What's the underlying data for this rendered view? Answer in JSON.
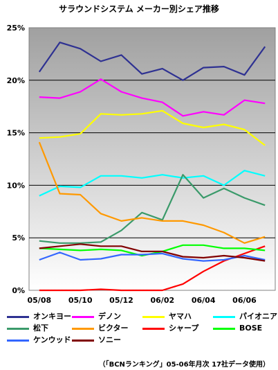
{
  "chart_data": {
    "type": "line",
    "title": "サラウンドシステム メーカー別シェア推移",
    "xlabel": "",
    "ylabel": "",
    "x": [
      "05/08",
      "05/09",
      "05/10",
      "05/11",
      "05/12",
      "06/01",
      "06/02",
      "06/03",
      "06/04",
      "06/05",
      "06/06",
      "06/07"
    ],
    "x_tick_labels": [
      "05/08",
      "05/10",
      "05/12",
      "06/02",
      "06/04",
      "06/06"
    ],
    "y_tick_labels": [
      "0%",
      "5%",
      "10%",
      "15%",
      "20%",
      "25%"
    ],
    "ylim": [
      0,
      25
    ],
    "grid": true,
    "legend_position": "bottom",
    "series": [
      {
        "name": "オンキヨー",
        "color": "#2e3192",
        "values": [
          20.8,
          23.6,
          23.0,
          21.8,
          22.4,
          20.6,
          21.1,
          20.0,
          21.2,
          21.3,
          20.5,
          23.2
        ]
      },
      {
        "name": "デノン",
        "color": "#ff00ff",
        "values": [
          18.4,
          18.3,
          18.9,
          20.1,
          18.9,
          18.3,
          17.9,
          16.6,
          17.0,
          16.7,
          18.1,
          17.8
        ]
      },
      {
        "name": "ヤマハ",
        "color": "#ffff00",
        "values": [
          14.5,
          14.6,
          14.9,
          16.8,
          16.7,
          16.8,
          17.1,
          15.9,
          15.5,
          15.8,
          15.3,
          13.8
        ]
      },
      {
        "name": "パイオニア",
        "color": "#00ffff",
        "values": [
          9.0,
          9.9,
          9.8,
          10.9,
          10.9,
          10.7,
          11.0,
          10.7,
          10.9,
          10.0,
          11.4,
          10.9
        ]
      },
      {
        "name": "松下",
        "color": "#3a9a6a",
        "values": [
          4.7,
          4.5,
          4.5,
          4.6,
          5.7,
          7.4,
          6.7,
          11.0,
          8.8,
          9.7,
          8.8,
          8.1
        ]
      },
      {
        "name": "ビクター",
        "color": "#ff9900",
        "values": [
          14.1,
          9.2,
          9.1,
          7.3,
          6.6,
          6.9,
          6.6,
          6.6,
          6.2,
          5.5,
          4.5,
          5.1
        ]
      },
      {
        "name": "シャープ",
        "color": "#ff0000",
        "values": [
          0.0,
          0.0,
          0.0,
          0.1,
          0.0,
          0.0,
          0.0,
          0.6,
          1.8,
          2.8,
          3.5,
          4.2
        ]
      },
      {
        "name": "BOSE",
        "color": "#00ff00",
        "values": [
          4.0,
          3.9,
          3.8,
          3.9,
          3.8,
          3.3,
          3.7,
          4.3,
          4.3,
          4.0,
          4.0,
          3.8
        ]
      },
      {
        "name": "ケンウッド",
        "color": "#3366ff",
        "values": [
          2.9,
          3.6,
          2.9,
          3.0,
          3.4,
          3.4,
          3.5,
          3.0,
          2.8,
          2.9,
          3.3,
          2.9
        ]
      },
      {
        "name": "ソニー",
        "color": "#800000",
        "values": [
          4.0,
          4.2,
          4.4,
          4.2,
          4.2,
          3.7,
          3.7,
          3.2,
          3.1,
          3.3,
          3.1,
          2.8
        ]
      }
    ]
  },
  "legend_rows": [
    [
      "オンキヨー",
      "デノン",
      "ヤマハ",
      "パイオニア"
    ],
    [
      "松下",
      "ビクター",
      "シャープ",
      "BOSE"
    ],
    [
      "ケンウッド",
      "ソニー"
    ]
  ],
  "colors": {
    "plot_background": "#c0c0c0",
    "grid": "#000000"
  },
  "source_note": "（「BCNランキング」05-06年月次 17社データ使用）"
}
